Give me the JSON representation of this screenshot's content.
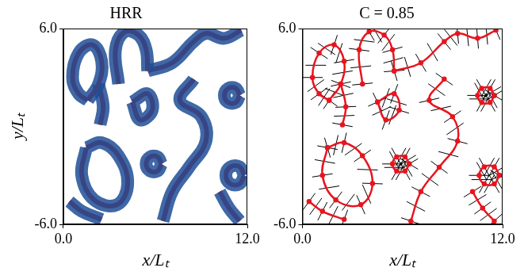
{
  "chart_data": [
    {
      "type": "line",
      "title": "HRR",
      "xlabel": "x/Lₜ",
      "ylabel": "y/Lₜ",
      "xlim": [
        0,
        12
      ],
      "ylim": [
        -6,
        6
      ],
      "xticks": [
        {
          "value": 0,
          "label": "0.0"
        },
        {
          "value": 12,
          "label": "12.0"
        }
      ],
      "yticks": [
        {
          "value": -6,
          "label": "-6.0"
        },
        {
          "value": 6,
          "label": "6.0"
        }
      ],
      "grid": false,
      "series": [
        {
          "color": "#c8141e",
          "x": [
            3.6,
            3.4,
            4.0,
            4.9,
            5.4,
            5.5
          ],
          "values": [
            2.6,
            4.7,
            5.8,
            5.6,
            4.7,
            3.4
          ]
        },
        {
          "color": "#c8141e",
          "x": [
            5.5,
            7.1,
            8.5,
            9.3,
            10.5,
            11.6
          ],
          "values": [
            3.4,
            3.9,
            5.2,
            5.7,
            5.4,
            5.9
          ]
        },
        {
          "color": "#c8141e",
          "x": [
            1.6,
            1.0,
            0.6,
            1.0,
            1.9,
            2.5,
            2.3,
            1.6
          ],
          "values": [
            1.6,
            2.0,
            3.0,
            4.5,
            5.0,
            4.0,
            2.6,
            1.6
          ]
        },
        {
          "color": "#c8141e",
          "x": [
            2.3,
            2.6,
            2.4
          ],
          "values": [
            2.6,
            1.2,
            0.1
          ]
        },
        {
          "color": "#c8141e",
          "x": [
            8.5,
            7.6,
            9.0,
            9.3,
            8.2,
            7.1,
            6.5
          ],
          "values": [
            2.9,
            1.6,
            0.6,
            -0.9,
            -2.5,
            -4.0,
            -5.8
          ]
        },
        {
          "color": "#c8141e",
          "x": [
            1.5,
            1.2,
            2.0,
            3.5,
            4.2,
            3.6,
            2.5,
            1.5
          ],
          "values": [
            -1.3,
            -3.0,
            -4.5,
            -4.8,
            -3.5,
            -1.8,
            -1.0,
            -1.3
          ]
        },
        {
          "color": "#c8141e",
          "x": [
            11.5,
            11.25,
            10.75,
            10.5,
            10.75,
            11.25,
            11.5
          ],
          "values": [
            1.9,
            2.33,
            2.33,
            1.9,
            1.47,
            1.47,
            1.9
          ]
        },
        {
          "color": "#c8141e",
          "x": [
            11.8,
            11.5,
            10.9,
            10.6,
            10.9,
            11.5,
            11.8
          ],
          "values": [
            -3.0,
            -2.48,
            -2.48,
            -3.0,
            -3.52,
            -3.52,
            -3.0
          ]
        },
        {
          "color": "#c8141e",
          "x": [
            6.4,
            6.15,
            5.65,
            5.4,
            5.65,
            6.15,
            6.4
          ],
          "values": [
            -2.3,
            -1.87,
            -1.87,
            -2.3,
            -2.73,
            -2.73,
            -2.3
          ]
        },
        {
          "color": "#c8141e",
          "x": [
            0.4,
            1.2,
            2.5
          ],
          "values": [
            -4.6,
            -5.2,
            -5.7
          ]
        },
        {
          "color": "#c8141e",
          "x": [
            4.5,
            5.0,
            5.8,
            5.5,
            4.5
          ],
          "values": [
            1.5,
            0.4,
            1.0,
            2.0,
            1.5
          ]
        },
        {
          "color": "#c8141e",
          "x": [
            10.2,
            10.8,
            11.5
          ],
          "values": [
            -4.0,
            -5.0,
            -5.8
          ]
        }
      ]
    },
    {
      "type": "line",
      "title": "C = 0.85",
      "xlabel": "x/Lₜ",
      "xlim": [
        0,
        12
      ],
      "ylim": [
        -6,
        6
      ],
      "xticks": [
        {
          "value": 0,
          "label": "0.0"
        },
        {
          "value": 12,
          "label": "12.0"
        }
      ],
      "yticks": [
        {
          "value": -6,
          "label": "-6.0"
        },
        {
          "value": 6,
          "label": "6.0"
        }
      ],
      "grid": false,
      "series": [
        {
          "color": "#e8141e",
          "marker": "circle",
          "x": [
            3.6,
            3.4,
            4.0,
            4.9,
            5.4,
            5.5
          ],
          "values": [
            2.6,
            4.7,
            5.8,
            5.6,
            4.7,
            3.4
          ]
        },
        {
          "color": "#e8141e",
          "marker": "circle",
          "x": [
            5.5,
            7.1,
            8.5,
            9.3,
            10.5,
            11.6
          ],
          "values": [
            3.4,
            3.9,
            5.2,
            5.7,
            5.4,
            5.9
          ]
        },
        {
          "color": "#e8141e",
          "marker": "circle",
          "x": [
            1.6,
            1.0,
            0.6,
            1.0,
            1.9,
            2.5,
            2.3,
            1.6
          ],
          "values": [
            1.6,
            2.0,
            3.0,
            4.5,
            5.0,
            4.0,
            2.6,
            1.6
          ]
        },
        {
          "color": "#e8141e",
          "marker": "circle",
          "x": [
            2.3,
            2.6,
            2.4
          ],
          "values": [
            2.6,
            1.2,
            0.1
          ]
        },
        {
          "color": "#e8141e",
          "marker": "circle",
          "x": [
            8.5,
            7.6,
            9.0,
            9.3,
            8.2,
            7.1,
            6.5
          ],
          "values": [
            2.9,
            1.6,
            0.6,
            -0.9,
            -2.5,
            -4.0,
            -5.8
          ]
        },
        {
          "color": "#e8141e",
          "marker": "circle",
          "x": [
            1.5,
            1.2,
            2.0,
            3.5,
            4.2,
            3.6,
            2.5,
            1.5
          ],
          "values": [
            -1.3,
            -3.0,
            -4.5,
            -4.8,
            -3.5,
            -1.8,
            -1.0,
            -1.3
          ]
        },
        {
          "color": "#e8141e",
          "marker": "circle",
          "x": [
            11.5,
            11.25,
            10.75,
            10.5,
            10.75,
            11.25,
            11.5
          ],
          "values": [
            1.9,
            2.33,
            2.33,
            1.9,
            1.47,
            1.47,
            1.9
          ]
        },
        {
          "color": "#e8141e",
          "marker": "circle",
          "x": [
            11.8,
            11.5,
            10.9,
            10.6,
            10.9,
            11.5,
            11.8
          ],
          "values": [
            -3.0,
            -2.48,
            -2.48,
            -3.0,
            -3.52,
            -3.52,
            -3.0
          ]
        },
        {
          "color": "#e8141e",
          "marker": "circle",
          "x": [
            6.4,
            6.15,
            5.65,
            5.4,
            5.65,
            6.15,
            6.4
          ],
          "values": [
            -2.3,
            -1.87,
            -1.87,
            -2.3,
            -2.73,
            -2.73,
            -2.3
          ]
        },
        {
          "color": "#e8141e",
          "marker": "circle",
          "x": [
            0.4,
            1.2,
            2.5
          ],
          "values": [
            -4.6,
            -5.2,
            -5.7
          ]
        },
        {
          "color": "#e8141e",
          "marker": "circle",
          "x": [
            4.5,
            5.0,
            5.8,
            5.5,
            4.5
          ],
          "values": [
            1.5,
            0.4,
            1.0,
            2.0,
            1.5
          ]
        },
        {
          "color": "#e8141e",
          "marker": "circle",
          "x": [
            10.2,
            10.8,
            11.5
          ],
          "values": [
            -4.0,
            -5.0,
            -5.8
          ]
        }
      ]
    }
  ]
}
